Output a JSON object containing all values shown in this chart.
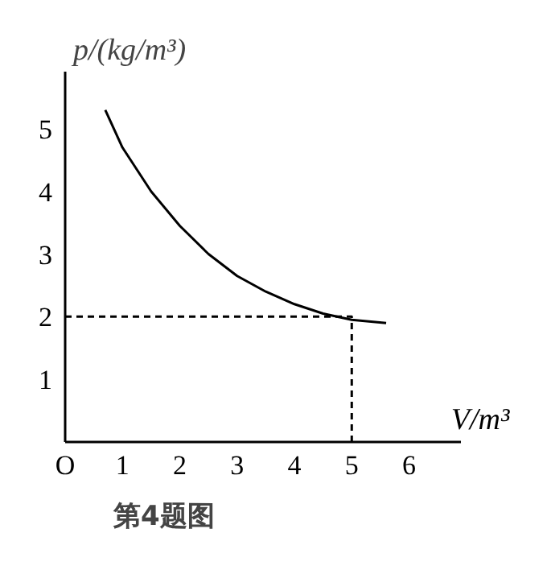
{
  "chart_data": {
    "type": "line",
    "xlabel": "V/m³",
    "ylabel": "p/(kg/m³)",
    "annotations": [
      "第4题图"
    ],
    "series": [
      {
        "color": "#000000",
        "x": [
          0.7,
          1.0,
          1.5,
          2.0,
          2.5,
          3.0,
          3.5,
          4.0,
          4.5,
          5.0,
          5.6
        ],
        "values": [
          5.3,
          4.7,
          4.0,
          3.45,
          3.0,
          2.65,
          2.4,
          2.2,
          2.05,
          1.95,
          1.9
        ],
        "line_style": "solid"
      },
      {
        "color": "#000000",
        "x": [
          0,
          5,
          5
        ],
        "values": [
          2,
          2,
          0
        ],
        "line_style": "dashed"
      }
    ],
    "xlim": [
      0,
      6.9
    ],
    "ylim": [
      0,
      5.9
    ],
    "xticks": [
      {
        "value": 0,
        "label": "O"
      },
      1,
      2,
      3,
      4,
      5,
      6
    ],
    "yticks": [
      1,
      2,
      3,
      4,
      5
    ],
    "grid": false,
    "marker": "none"
  }
}
